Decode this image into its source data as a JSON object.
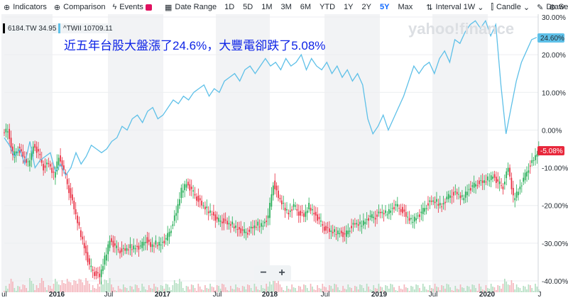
{
  "toolbar": {
    "indicators": "Indicators",
    "comparison": "Comparison",
    "events": "Events",
    "date_range": "Date Range",
    "ranges": [
      "1D",
      "5D",
      "1M",
      "3M",
      "6M",
      "YTD",
      "1Y",
      "2Y",
      "5Y",
      "Max"
    ],
    "active_range": "5Y",
    "interval": "Interval",
    "interval_value": "1W",
    "chart_type": "Candle",
    "draw": "Draw",
    "settings": "Setti"
  },
  "legend": [
    {
      "label": "6184.TW  34.95",
      "color": "#000000"
    },
    {
      "label": "^TWII  10709.11",
      "color": "#60c1e8"
    }
  ],
  "watermark": "yahoo!finance",
  "headline": "近五年台股大盤漲了24.6%，大豐電卻跌了5.08%",
  "badges": {
    "twii": "24.60%",
    "stock": "-5.08%"
  },
  "colors": {
    "twii_line": "#5ec0e8",
    "up": "#1eaa50",
    "down": "#e8283c",
    "badge_up": "#5ec0e8",
    "badge_down": "#e8283c",
    "shade": "#f2f3f5"
  },
  "chart_data": {
    "type": "line",
    "x_tick_labels": [
      "ul",
      "2016",
      "Jul",
      "2017",
      "Jul",
      "2018",
      "Jul",
      "2019",
      "Jul",
      "2020",
      "J"
    ],
    "y_tick_labels": [
      "30.00%",
      "20.00%",
      "10.00%",
      "0.00%",
      "-10.00%",
      "-20.00%",
      "-30.00%",
      "-40.00%"
    ],
    "ylim": [
      -40,
      30
    ],
    "y_unit": "% change",
    "series": [
      {
        "name": "^TWII",
        "kind": "line",
        "values": [
          -2,
          -4,
          -7,
          -5,
          -9,
          -3,
          -10,
          -8,
          -7,
          -6,
          -11,
          -9,
          -12,
          -10,
          -6,
          -9,
          -7,
          -4,
          -5,
          -6,
          -5,
          -3,
          -2,
          1,
          0,
          3,
          4,
          2,
          5,
          6,
          3,
          4,
          6,
          8,
          7,
          9,
          8,
          10,
          11,
          12,
          9,
          11,
          10,
          13,
          14,
          15,
          13,
          16,
          17,
          15,
          17,
          19,
          17,
          18,
          16,
          19,
          17,
          18,
          20,
          16,
          19,
          17,
          16,
          18,
          15,
          17,
          14,
          16,
          13,
          15,
          12,
          3,
          -1,
          1,
          4,
          0,
          3,
          6,
          9,
          13,
          17,
          15,
          17,
          18,
          15,
          19,
          21,
          18,
          24,
          23,
          26,
          28,
          29,
          27,
          29,
          25,
          28,
          12,
          -1,
          6,
          13,
          18,
          21,
          24,
          24.6
        ]
      },
      {
        "name": "6184.TW",
        "kind": "candle",
        "values": [
          0,
          -7,
          -5,
          -7,
          -9,
          -4,
          -6,
          -10,
          -9,
          -12,
          -7,
          -11,
          -16,
          -21,
          -26,
          -31,
          -36,
          -38,
          -39,
          -34,
          -29,
          -31,
          -32,
          -32,
          -31,
          -31,
          -31,
          -29,
          -31,
          -30,
          -30,
          -29,
          -26,
          -22,
          -16,
          -14,
          -16,
          -18,
          -20,
          -21,
          -22,
          -24,
          -24,
          -25,
          -25,
          -26,
          -27,
          -27,
          -26,
          -25,
          -25,
          -23,
          -14,
          -18,
          -20,
          -22,
          -20,
          -22,
          -23,
          -20,
          -22,
          -24,
          -26,
          -27,
          -27,
          -27,
          -28,
          -26,
          -25,
          -25,
          -24,
          -23,
          -23,
          -22,
          -22,
          -21,
          -20,
          -21,
          -23,
          -24,
          -23,
          -22,
          -20,
          -19,
          -19,
          -20,
          -18,
          -17,
          -17,
          -18,
          -16,
          -15,
          -14,
          -14,
          -13,
          -12,
          -14,
          -15,
          -10,
          -18,
          -16,
          -13,
          -10,
          -8,
          -5.08
        ]
      }
    ]
  }
}
